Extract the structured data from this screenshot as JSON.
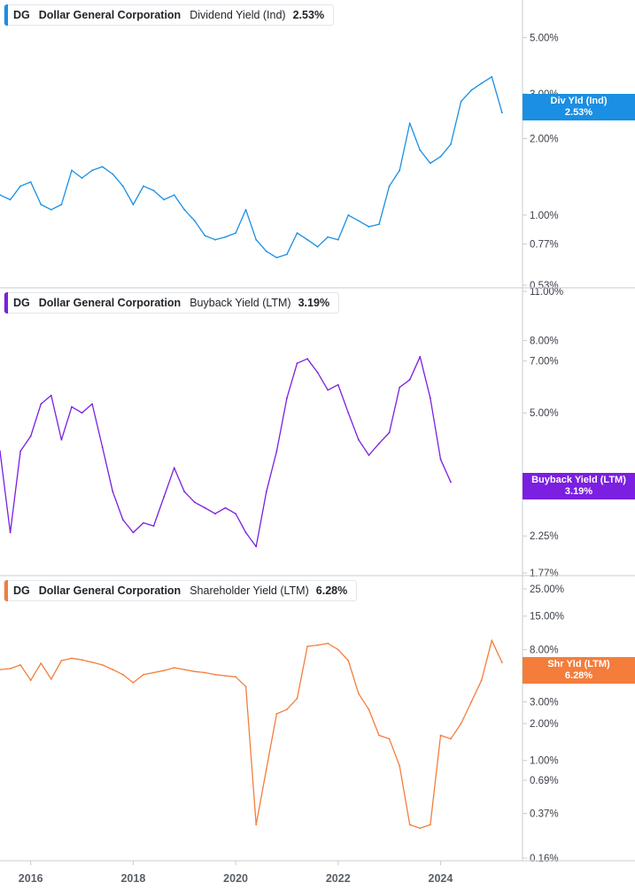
{
  "chart_data": [
    {
      "type": "line",
      "ticker": "DG",
      "company": "Dollar General Corporation",
      "metric": "Dividend Yield (Ind)",
      "value_label": "2.53%",
      "badge_label": "Div Yld (Ind)",
      "color": "#1a8fe3",
      "scale": "log",
      "ylim": [
        0.53,
        6.8
      ],
      "ticks": [
        {
          "label": "5.00%",
          "value": 5.0
        },
        {
          "label": "3.00%",
          "value": 3.0
        },
        {
          "label": "2.00%",
          "value": 2.0
        },
        {
          "label": "1.00%",
          "value": 1.0
        },
        {
          "label": "0.77%",
          "value": 0.77
        },
        {
          "label": "0.53%",
          "value": 0.53
        }
      ],
      "x": [
        2015.4,
        2015.6,
        2015.8,
        2016.0,
        2016.2,
        2016.4,
        2016.6,
        2016.8,
        2017.0,
        2017.2,
        2017.4,
        2017.6,
        2017.8,
        2018.0,
        2018.2,
        2018.4,
        2018.6,
        2018.8,
        2019.0,
        2019.2,
        2019.4,
        2019.6,
        2019.8,
        2020.0,
        2020.2,
        2020.4,
        2020.6,
        2020.8,
        2021.0,
        2021.2,
        2021.4,
        2021.6,
        2021.8,
        2022.0,
        2022.2,
        2022.4,
        2022.6,
        2022.8,
        2023.0,
        2023.2,
        2023.4,
        2023.6,
        2023.8,
        2024.0,
        2024.2,
        2024.4,
        2024.6,
        2024.8,
        2025.0,
        2025.2
      ],
      "y": [
        1.2,
        1.15,
        1.3,
        1.35,
        1.1,
        1.05,
        1.1,
        1.5,
        1.4,
        1.5,
        1.55,
        1.45,
        1.3,
        1.1,
        1.3,
        1.25,
        1.15,
        1.2,
        1.05,
        0.95,
        0.83,
        0.8,
        0.82,
        0.85,
        1.05,
        0.8,
        0.72,
        0.68,
        0.7,
        0.85,
        0.8,
        0.75,
        0.82,
        0.8,
        1.0,
        0.95,
        0.9,
        0.92,
        1.3,
        1.5,
        2.3,
        1.8,
        1.6,
        1.7,
        1.9,
        2.8,
        3.1,
        3.3,
        3.5,
        2.53
      ]
    },
    {
      "type": "line",
      "ticker": "DG",
      "company": "Dollar General Corporation",
      "metric": "Buyback Yield (LTM)",
      "value_label": "3.19%",
      "badge_label": "Buyback Yield (LTM)",
      "color": "#7b1fe0",
      "scale": "log",
      "ylim": [
        1.77,
        11.0
      ],
      "ticks": [
        {
          "label": "11.00%",
          "value": 11.0
        },
        {
          "label": "8.00%",
          "value": 8.0
        },
        {
          "label": "7.00%",
          "value": 7.0
        },
        {
          "label": "5.00%",
          "value": 5.0
        },
        {
          "label": "2.25%",
          "value": 2.25
        },
        {
          "label": "1.77%",
          "value": 1.77
        }
      ],
      "x": [
        2015.4,
        2015.6,
        2015.8,
        2016.0,
        2016.2,
        2016.4,
        2016.6,
        2016.8,
        2017.0,
        2017.2,
        2017.4,
        2017.6,
        2017.8,
        2018.0,
        2018.2,
        2018.4,
        2018.6,
        2018.8,
        2019.0,
        2019.2,
        2019.4,
        2019.6,
        2019.8,
        2020.0,
        2020.2,
        2020.4,
        2020.6,
        2020.8,
        2021.0,
        2021.2,
        2021.4,
        2021.6,
        2021.8,
        2022.0,
        2022.2,
        2022.4,
        2022.6,
        2022.8,
        2023.0,
        2023.2,
        2023.4,
        2023.6,
        2023.8,
        2024.0,
        2024.2
      ],
      "y": [
        3.9,
        2.3,
        3.9,
        4.3,
        5.3,
        5.6,
        4.2,
        5.2,
        5.0,
        5.3,
        4.0,
        3.0,
        2.5,
        2.3,
        2.45,
        2.4,
        2.9,
        3.5,
        3.0,
        2.8,
        2.7,
        2.6,
        2.7,
        2.6,
        2.3,
        2.1,
        3.0,
        3.9,
        5.5,
        6.9,
        7.1,
        6.5,
        5.8,
        6.0,
        5.0,
        4.2,
        3.8,
        4.1,
        4.4,
        5.9,
        6.2,
        7.2,
        5.5,
        3.7,
        3.19
      ]
    },
    {
      "type": "line",
      "ticker": "DG",
      "company": "Dollar General Corporation",
      "metric": "Shareholder Yield (LTM)",
      "value_label": "6.28%",
      "badge_label": "Shr Yld (LTM)",
      "color": "#f47d3c",
      "scale": "log",
      "ylim": [
        0.16,
        30.0
      ],
      "ticks": [
        {
          "label": "25.00%",
          "value": 25.0
        },
        {
          "label": "15.00%",
          "value": 15.0
        },
        {
          "label": "8.00%",
          "value": 8.0
        },
        {
          "label": "3.00%",
          "value": 3.0
        },
        {
          "label": "2.00%",
          "value": 2.0
        },
        {
          "label": "1.00%",
          "value": 1.0
        },
        {
          "label": "0.69%",
          "value": 0.69
        },
        {
          "label": "0.37%",
          "value": 0.37
        },
        {
          "label": "0.16%",
          "value": 0.16
        }
      ],
      "x": [
        2015.4,
        2015.6,
        2015.8,
        2016.0,
        2016.2,
        2016.4,
        2016.6,
        2016.8,
        2017.0,
        2017.2,
        2017.4,
        2017.6,
        2017.8,
        2018.0,
        2018.2,
        2018.4,
        2018.6,
        2018.8,
        2019.0,
        2019.2,
        2019.4,
        2019.6,
        2019.8,
        2020.0,
        2020.2,
        2020.4,
        2020.6,
        2020.8,
        2021.0,
        2021.2,
        2021.4,
        2021.6,
        2021.8,
        2022.0,
        2022.2,
        2022.4,
        2022.6,
        2022.8,
        2023.0,
        2023.2,
        2023.4,
        2023.6,
        2023.8,
        2024.0,
        2024.2,
        2024.4,
        2024.6,
        2024.8,
        2025.0,
        2025.2
      ],
      "y": [
        5.5,
        5.6,
        6.0,
        4.5,
        6.2,
        4.6,
        6.5,
        6.8,
        6.6,
        6.3,
        6.0,
        5.5,
        5.0,
        4.3,
        5.0,
        5.2,
        5.4,
        5.7,
        5.5,
        5.3,
        5.2,
        5.0,
        4.9,
        4.8,
        4.0,
        0.3,
        0.85,
        2.4,
        2.6,
        3.2,
        8.5,
        8.7,
        9.0,
        8.0,
        6.5,
        3.5,
        2.6,
        1.6,
        1.5,
        0.9,
        0.3,
        0.28,
        0.3,
        1.6,
        1.5,
        2.0,
        3.0,
        4.5,
        9.5,
        6.28
      ]
    }
  ],
  "x_axis": {
    "ticks": [
      {
        "label": "2016",
        "value": 2016
      },
      {
        "label": "2018",
        "value": 2018
      },
      {
        "label": "2020",
        "value": 2020
      },
      {
        "label": "2022",
        "value": 2022
      },
      {
        "label": "2024",
        "value": 2024
      }
    ],
    "xlim": [
      2015.4,
      2025.6
    ]
  }
}
